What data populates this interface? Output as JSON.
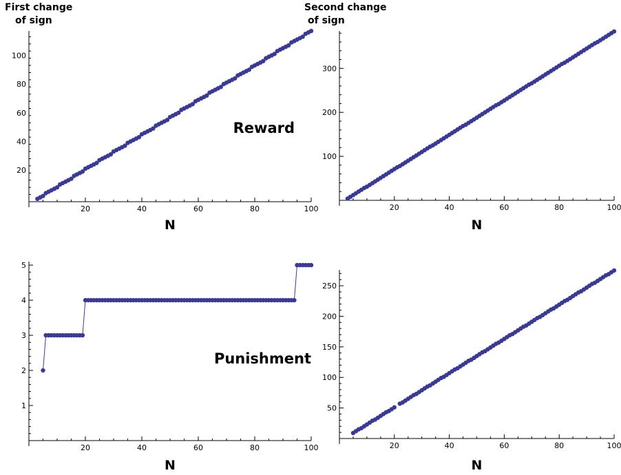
{
  "headings": {
    "first_line1": "First change",
    "first_line2": "of sign",
    "second_line1": "Second change",
    "second_line2": "of sign"
  },
  "annotations": {
    "reward": "Reward",
    "punishment": "Punishment"
  },
  "colors": {
    "marker": "#3a3a96",
    "line": "#3a3a96"
  },
  "chart_data": [
    {
      "id": "reward-first",
      "type": "scatter",
      "xlabel": "N",
      "xlim": [
        0,
        100
      ],
      "ylim": [
        -2,
        117
      ],
      "xticks": [
        20,
        40,
        60,
        80,
        100
      ],
      "yticks": [
        20,
        40,
        60,
        80,
        100
      ],
      "grid": false,
      "connected": false,
      "gen": {
        "kind": "linear",
        "x0": 3,
        "x1": 100,
        "y0": 0,
        "y1": 117
      }
    },
    {
      "id": "reward-second",
      "type": "scatter",
      "xlabel": "N",
      "xlim": [
        0,
        100
      ],
      "ylim": [
        0,
        385
      ],
      "xticks": [
        20,
        40,
        60,
        80,
        100
      ],
      "yticks": [
        100,
        200,
        300
      ],
      "grid": false,
      "connected": false,
      "gen": {
        "kind": "linear",
        "x0": 3,
        "x1": 100,
        "y0": 4,
        "y1": 384
      }
    },
    {
      "id": "punishment-first",
      "type": "line",
      "xlabel": "N",
      "xlim": [
        0,
        100
      ],
      "ylim": [
        0,
        5.1
      ],
      "xticks": [
        20,
        40,
        60,
        80,
        100
      ],
      "yticks": [
        1,
        2,
        3,
        4,
        5
      ],
      "grid": false,
      "connected": true,
      "gen": {
        "kind": "step",
        "x0": 5,
        "x1": 100,
        "steps": [
          {
            "until": 5,
            "y": 2
          },
          {
            "until": 19,
            "y": 3
          },
          {
            "until": 94,
            "y": 4
          },
          {
            "until": 100,
            "y": 5
          }
        ]
      }
    },
    {
      "id": "punishment-second",
      "type": "scatter",
      "xlabel": "N",
      "xlim": [
        0,
        100
      ],
      "ylim": [
        0,
        276
      ],
      "xticks": [
        20,
        40,
        60,
        80,
        100
      ],
      "yticks": [
        50,
        100,
        150,
        200,
        250
      ],
      "grid": false,
      "connected": false,
      "gen": {
        "kind": "linear",
        "x0": 5,
        "x1": 100,
        "y0": 9,
        "y1": 275,
        "skip": [
          21
        ]
      }
    }
  ]
}
